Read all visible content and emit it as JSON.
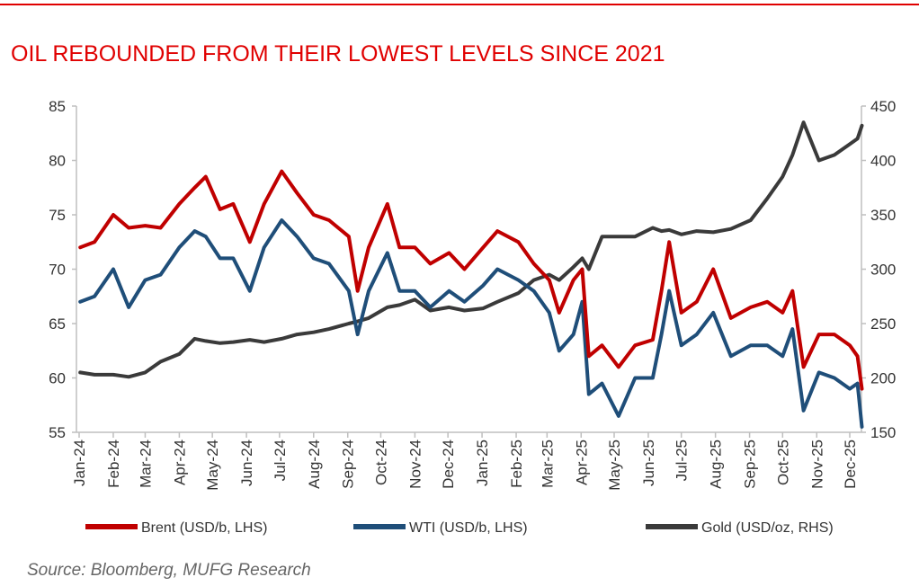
{
  "title": "OIL REBOUNDED FROM THEIR LOWEST LEVELS SINCE 2021",
  "source": "Source: Bloomberg, MUFG Research",
  "chart_data": {
    "type": "line",
    "title": "OIL REBOUNDED FROM THEIR LOWEST LEVELS SINCE 2021",
    "left_axis": {
      "ylim": [
        55,
        85
      ],
      "ticks": [
        55,
        60,
        65,
        70,
        75,
        80,
        85
      ]
    },
    "right_axis": {
      "ylim": [
        150,
        450
      ],
      "ticks": [
        150,
        200,
        250,
        300,
        350,
        400,
        450
      ]
    },
    "x_tick_labels": [
      "Jan-24",
      "Feb-24",
      "Mar-24",
      "Apr-24",
      "May-24",
      "Jun-24",
      "Jul-24",
      "Aug-24",
      "Sep-24",
      "Oct-24",
      "Nov-24",
      "Dec-24",
      "Jan-25",
      "Feb-25",
      "Mar-25",
      "Apr-25",
      "May-25",
      "Jun-25",
      "Jul-25",
      "Aug-25",
      "Sep-25",
      "Oct-25",
      "Nov-25",
      "Dec-25"
    ],
    "x_tick_dates": [
      "2024-01-01",
      "2024-02-01",
      "2024-03-01",
      "2024-04-01",
      "2024-05-01",
      "2024-06-01",
      "2024-07-01",
      "2024-08-01",
      "2024-09-01",
      "2024-10-01",
      "2024-11-01",
      "2024-12-01",
      "2025-01-01",
      "2025-02-01",
      "2025-03-01",
      "2025-04-01",
      "2025-05-01",
      "2025-06-01",
      "2025-07-01",
      "2025-08-01",
      "2025-09-01",
      "2025-10-01",
      "2025-11-01",
      "2025-12-01"
    ],
    "grid": false,
    "legend_position": "bottom",
    "x": [
      "2024-01-02",
      "2024-01-15",
      "2024-02-01",
      "2024-02-15",
      "2024-03-01",
      "2024-03-15",
      "2024-04-01",
      "2024-04-15",
      "2024-04-25",
      "2024-05-08",
      "2024-05-20",
      "2024-06-04",
      "2024-06-17",
      "2024-07-03",
      "2024-07-17",
      "2024-08-01",
      "2024-08-15",
      "2024-09-02",
      "2024-09-10",
      "2024-09-20",
      "2024-10-07",
      "2024-10-18",
      "2024-11-01",
      "2024-11-15",
      "2024-12-02",
      "2024-12-16",
      "2025-01-02",
      "2025-01-15",
      "2025-02-03",
      "2025-02-17",
      "2025-03-03",
      "2025-03-12",
      "2025-03-25",
      "2025-04-02",
      "2025-04-08",
      "2025-04-20",
      "2025-05-05",
      "2025-05-20",
      "2025-06-05",
      "2025-06-13",
      "2025-06-20",
      "2025-07-01",
      "2025-07-15",
      "2025-07-30",
      "2025-08-15",
      "2025-09-02",
      "2025-09-17",
      "2025-10-01",
      "2025-10-10",
      "2025-10-20",
      "2025-11-03",
      "2025-11-17",
      "2025-12-01",
      "2025-12-08",
      "2025-12-12"
    ],
    "series": [
      {
        "name": "Brent (USD/b, LHS)",
        "axis": "left",
        "color": "#c00000",
        "values": [
          72,
          72.5,
          75,
          73.8,
          74,
          73.8,
          76,
          77.5,
          78.5,
          75.5,
          76,
          72.5,
          76,
          79,
          77,
          75,
          74.5,
          73,
          68,
          72,
          76,
          72,
          72,
          70.5,
          71.5,
          70,
          72,
          73.5,
          72.5,
          70.5,
          69,
          66,
          69,
          70,
          62,
          63,
          61,
          63,
          63.5,
          68,
          72.5,
          66,
          67,
          70,
          65.5,
          66.5,
          67,
          66,
          68,
          61,
          64,
          64,
          63,
          62,
          59
        ]
      },
      {
        "name": "WTI (USD/b, LHS)",
        "axis": "left",
        "color": "#1f4e79",
        "values": [
          67,
          67.5,
          70,
          66.5,
          69,
          69.5,
          72,
          73.5,
          73,
          71,
          71,
          68,
          72,
          74.5,
          73,
          71,
          70.5,
          68,
          64,
          68,
          71.5,
          68,
          68,
          66.5,
          68,
          67,
          68.5,
          70,
          69,
          68,
          66,
          62.5,
          64,
          67,
          58.5,
          59.5,
          56.5,
          60,
          60,
          64,
          68,
          63,
          64,
          66,
          62,
          63,
          63,
          62,
          64.5,
          57,
          60.5,
          60,
          59,
          59.5,
          55.5
        ]
      },
      {
        "name": "Gold (USD/oz, RHS)",
        "axis": "right",
        "color": "#3a3a3a",
        "values": [
          205,
          203,
          203,
          201,
          205,
          215,
          222,
          236,
          234,
          232,
          233,
          235,
          233,
          236,
          240,
          242,
          245,
          250,
          252,
          255,
          265,
          267,
          272,
          262,
          265,
          262,
          264,
          270,
          278,
          290,
          295,
          290,
          302,
          310,
          300,
          330,
          330,
          330,
          338,
          335,
          336,
          332,
          335,
          334,
          337,
          345,
          365,
          385,
          405,
          435,
          400,
          405,
          415,
          420,
          432
        ]
      }
    ]
  }
}
